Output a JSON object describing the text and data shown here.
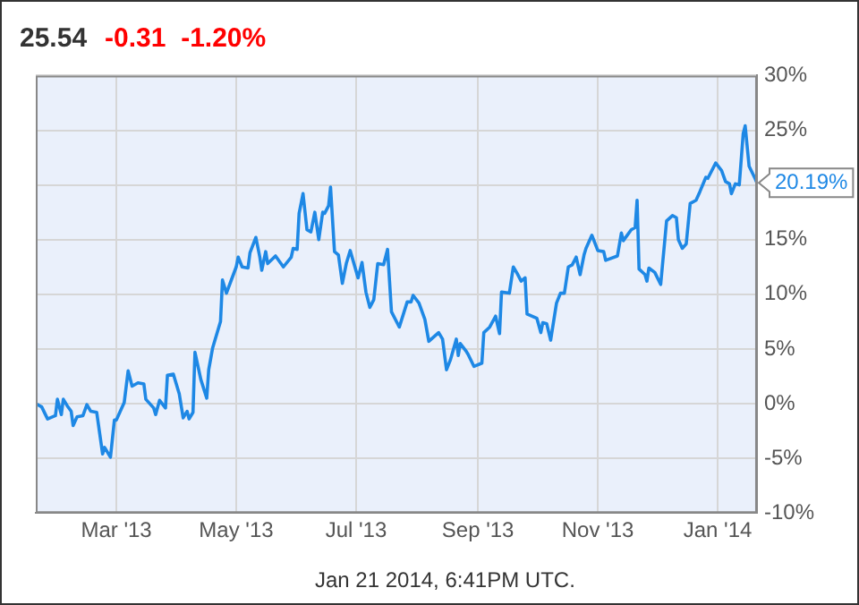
{
  "chart_data": {
    "type": "line",
    "title": "25.54",
    "subtitle": "-0.31  -1.20%",
    "annotations": [
      "Jan 21 2014, 6:41PM UTC.",
      {
        "text": "20.19%",
        "x": "2014-01-21",
        "y": 20.19
      }
    ],
    "color": "#1e88e5",
    "marker": "none",
    "line_style": "solid",
    "grid": true,
    "xlim": [
      "2013-01-19",
      "2014-01-21"
    ],
    "xticks": [
      {
        "value": "2013-03-01",
        "label": "Mar '13"
      },
      {
        "value": "2013-05-01",
        "label": "May '13"
      },
      {
        "value": "2013-07-01",
        "label": "Jul '13"
      },
      {
        "value": "2013-09-01",
        "label": "Sep '13"
      },
      {
        "value": "2013-11-01",
        "label": "Nov '13"
      },
      {
        "value": "2014-01-01",
        "label": "Jan '14"
      }
    ],
    "ylim": [
      -10,
      30
    ],
    "yticks": [
      {
        "value": -10,
        "label": "-10%"
      },
      {
        "value": -5,
        "label": "-5%"
      },
      {
        "value": 0,
        "label": "0%"
      },
      {
        "value": 5,
        "label": "5%"
      },
      {
        "value": 10,
        "label": "10%"
      },
      {
        "value": 15,
        "label": "15%"
      },
      {
        "value": 20,
        "label": null
      },
      {
        "value": 25,
        "label": "25%"
      },
      {
        "value": 30,
        "label": "30%"
      }
    ],
    "x": [
      "2013-01-19",
      "2013-01-22",
      "2013-01-25",
      "2013-01-29",
      "2013-01-30",
      "2013-02-01",
      "2013-02-02",
      "2013-02-04",
      "2013-02-06",
      "2013-02-07",
      "2013-02-09",
      "2013-02-12",
      "2013-02-14",
      "2013-02-16",
      "2013-02-19",
      "2013-02-22",
      "2013-02-23",
      "2013-02-26",
      "2013-02-28",
      "2013-03-01",
      "2013-03-05",
      "2013-03-07",
      "2013-03-09",
      "2013-03-12",
      "2013-03-15",
      "2013-03-16",
      "2013-03-20",
      "2013-03-21",
      "2013-03-23",
      "2013-03-26",
      "2013-03-27",
      "2013-03-30",
      "2013-04-02",
      "2013-04-04",
      "2013-04-06",
      "2013-04-07",
      "2013-04-09",
      "2013-04-10",
      "2013-04-13",
      "2013-04-16",
      "2013-04-17",
      "2013-04-19",
      "2013-04-23",
      "2013-04-24",
      "2013-04-26",
      "2013-05-01",
      "2013-05-02",
      "2013-05-04",
      "2013-05-07",
      "2013-05-08",
      "2013-05-11",
      "2013-05-13",
      "2013-05-14",
      "2013-05-16",
      "2013-05-17",
      "2013-05-21",
      "2013-05-25",
      "2013-05-29",
      "2013-05-30",
      "2013-06-01",
      "2013-06-02",
      "2013-06-04",
      "2013-06-06",
      "2013-06-08",
      "2013-06-10",
      "2013-06-12",
      "2013-06-14",
      "2013-06-15",
      "2013-06-17",
      "2013-06-18",
      "2013-06-20",
      "2013-06-22",
      "2013-06-24",
      "2013-06-26",
      "2013-06-28",
      "2013-07-02",
      "2013-07-04",
      "2013-07-06",
      "2013-07-08",
      "2013-07-10",
      "2013-07-12",
      "2013-07-15",
      "2013-07-17",
      "2013-07-19",
      "2013-07-23",
      "2013-07-27",
      "2013-07-29",
      "2013-07-30",
      "2013-08-02",
      "2013-08-05",
      "2013-08-07",
      "2013-08-12",
      "2013-08-14",
      "2013-08-16",
      "2013-08-18",
      "2013-08-21",
      "2013-08-22",
      "2013-08-23",
      "2013-08-26",
      "2013-08-27",
      "2013-08-30",
      "2013-09-03",
      "2013-09-04",
      "2013-09-07",
      "2013-09-10",
      "2013-09-12",
      "2013-09-13",
      "2013-09-17",
      "2013-09-19",
      "2013-09-21",
      "2013-09-23",
      "2013-09-25",
      "2013-09-26",
      "2013-10-01",
      "2013-10-03",
      "2013-10-04",
      "2013-10-06",
      "2013-10-08",
      "2013-10-11",
      "2013-10-13",
      "2013-10-15",
      "2013-10-17",
      "2013-10-19",
      "2013-10-21",
      "2013-10-23",
      "2013-10-25",
      "2013-10-26",
      "2013-10-29",
      "2013-11-01",
      "2013-11-04",
      "2013-11-05",
      "2013-11-11",
      "2013-11-13",
      "2013-11-14",
      "2013-11-18",
      "2013-11-20",
      "2013-11-21",
      "2013-11-22",
      "2013-11-25",
      "2013-11-26",
      "2013-11-27",
      "2013-11-30",
      "2013-12-03",
      "2013-12-06",
      "2013-12-09",
      "2013-12-11",
      "2013-12-12",
      "2013-12-14",
      "2013-12-16",
      "2013-12-18",
      "2013-12-21",
      "2013-12-23",
      "2013-12-26",
      "2013-12-27",
      "2013-12-31",
      "2014-01-03",
      "2014-01-05",
      "2014-01-07",
      "2014-01-08",
      "2014-01-10",
      "2014-01-12",
      "2014-01-14",
      "2014-01-15",
      "2014-01-17",
      "2014-01-20",
      "2014-01-21"
    ],
    "values": [
      0.0,
      -0.3,
      -1.4,
      -1.1,
      0.4,
      -1.0,
      0.4,
      -0.2,
      -0.7,
      -2.0,
      -1.2,
      -1.1,
      -0.1,
      -0.7,
      -0.8,
      -4.6,
      -4.0,
      -4.9,
      -1.5,
      -1.5,
      0.1,
      3.0,
      1.6,
      1.9,
      1.8,
      0.4,
      -0.4,
      -1.0,
      0.3,
      -0.4,
      2.6,
      2.7,
      0.9,
      -1.3,
      -0.7,
      -1.4,
      -0.8,
      4.7,
      2.2,
      0.5,
      3.1,
      5.1,
      7.5,
      11.3,
      10.1,
      12.5,
      13.4,
      12.5,
      12.4,
      13.8,
      15.2,
      13.4,
      12.2,
      13.9,
      12.8,
      13.5,
      12.5,
      13.4,
      14.2,
      14.1,
      17.4,
      19.2,
      15.9,
      15.7,
      17.5,
      15.0,
      17.5,
      17.4,
      18.1,
      19.8,
      13.9,
      13.6,
      11.0,
      12.8,
      14.0,
      11.5,
      12.9,
      10.2,
      8.8,
      9.5,
      12.8,
      12.7,
      14.1,
      8.4,
      7.0,
      9.3,
      9.3,
      9.9,
      9.2,
      7.7,
      5.7,
      6.5,
      5.9,
      3.1,
      4.0,
      5.9,
      4.4,
      5.5,
      4.8,
      4.5,
      3.4,
      3.7,
      6.5,
      7.0,
      8.0,
      6.4,
      10.2,
      10.1,
      12.5,
      11.9,
      11.2,
      11.5,
      8.2,
      7.8,
      6.5,
      7.4,
      7.3,
      5.8,
      9.2,
      10.1,
      10.1,
      12.5,
      12.7,
      13.4,
      11.8,
      13.6,
      14.2,
      15.4,
      14.0,
      13.9,
      13.1,
      13.5,
      15.6,
      14.9,
      15.9,
      16.1,
      18.6,
      12.3,
      11.8,
      11.2,
      12.4,
      12.0,
      10.9,
      16.7,
      17.2,
      17.0,
      15.0,
      14.2,
      14.6,
      18.3,
      18.6,
      19.4,
      20.7,
      20.6,
      22.0,
      21.3,
      20.3,
      20.1,
      19.2,
      20.1,
      20.0,
      24.7,
      25.4,
      21.7,
      20.6,
      20.19
    ]
  }
}
